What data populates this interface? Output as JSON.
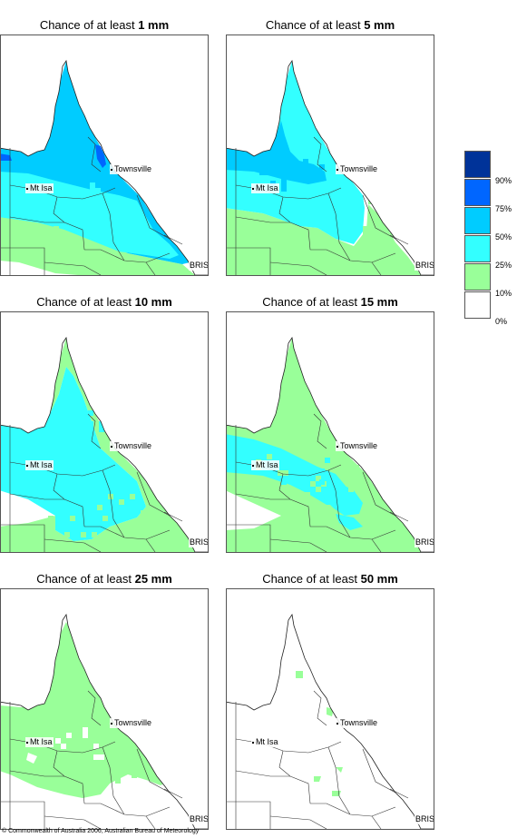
{
  "panels": [
    {
      "title_prefix": "Chance of at least ",
      "threshold": "1 mm"
    },
    {
      "title_prefix": "Chance of at least ",
      "threshold": "5 mm"
    },
    {
      "title_prefix": "Chance of at least ",
      "threshold": "10 mm"
    },
    {
      "title_prefix": "Chance of at least ",
      "threshold": "15 mm"
    },
    {
      "title_prefix": "Chance of at least ",
      "threshold": "25 mm"
    },
    {
      "title_prefix": "Chance of at least ",
      "threshold": "50 mm"
    }
  ],
  "places": {
    "townsville": "Townsville",
    "mt_isa": "Mt Isa",
    "bris": "BRIS"
  },
  "legend": {
    "classes": [
      {
        "color": "#003399"
      },
      {
        "color": "#0066ff"
      },
      {
        "color": "#00ccff"
      },
      {
        "color": "#33ffff"
      },
      {
        "color": "#99ff99"
      },
      {
        "color": "#ffffff"
      }
    ],
    "labels": [
      "90%",
      "75%",
      "50%",
      "25%",
      "10%",
      "0%"
    ]
  },
  "copyright": "© Commonwealth of Australia 2006, Australian Bureau of Meteorology"
}
